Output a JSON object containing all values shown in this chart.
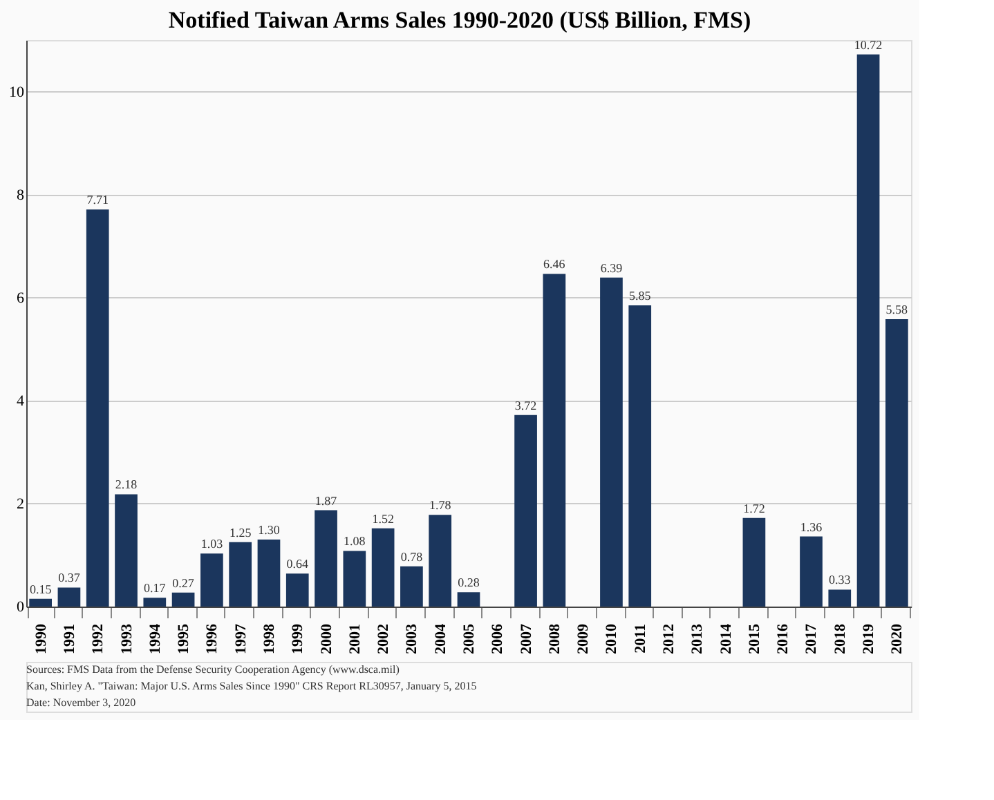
{
  "chart_data": {
    "type": "bar",
    "title": "Notified Taiwan Arms Sales 1990-2020 (US$ Billion, FMS)",
    "categories": [
      "1990",
      "1991",
      "1992",
      "1993",
      "1994",
      "1995",
      "1996",
      "1997",
      "1998",
      "1999",
      "2000",
      "2001",
      "2002",
      "2003",
      "2004",
      "2005",
      "2006",
      "2007",
      "2008",
      "2009",
      "2010",
      "2011",
      "2012",
      "2013",
      "2014",
      "2015",
      "2016",
      "2017",
      "2018",
      "2019",
      "2020"
    ],
    "values": [
      0.15,
      0.37,
      7.71,
      2.18,
      0.17,
      0.27,
      1.03,
      1.25,
      1.3,
      0.64,
      1.87,
      1.08,
      1.52,
      0.78,
      1.78,
      0.28,
      0,
      3.72,
      6.46,
      0,
      6.39,
      5.85,
      0,
      0,
      0,
      1.72,
      0,
      1.36,
      0.33,
      10.72,
      5.58
    ],
    "value_labels": [
      "0.15",
      "0.37",
      "7.71",
      "2.18",
      "0.17",
      "0.27",
      "1.03",
      "1.25",
      "1.30",
      "0.64",
      "1.87",
      "1.08",
      "1.52",
      "0.78",
      "1.78",
      "0.28",
      null,
      "3.72",
      "6.46",
      null,
      "6.39",
      "5.85",
      null,
      null,
      null,
      "1.72",
      null,
      "1.36",
      "0.33",
      "10.72",
      "5.58"
    ],
    "color": "#1b365d",
    "ylim": [
      0,
      11
    ],
    "yticks": [
      0,
      2,
      4,
      6,
      8,
      10
    ],
    "grid": "y",
    "annotations": [
      "Sources:   FMS Data from the Defense Security Cooperation Agency (www.dsca.mil)",
      "Kan, Shirley A. \"Taiwan: Major U.S. Arms Sales Since 1990\" CRS Report RL30957, January 5, 2015",
      "Date:   November 3, 2020"
    ]
  }
}
